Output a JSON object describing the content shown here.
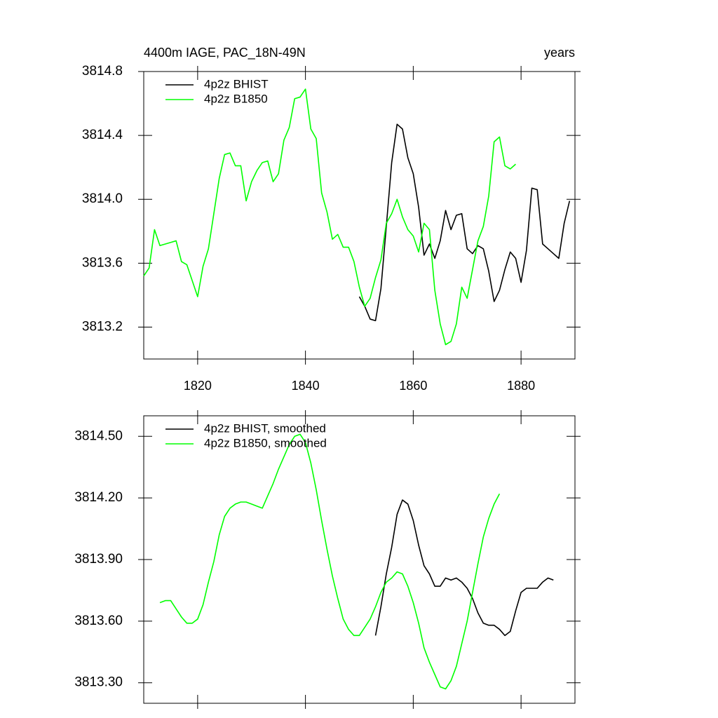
{
  "chart_data": [
    {
      "type": "line",
      "title": "4400m IAGE, PAC_18N-49N",
      "right_title": "years",
      "x": [
        1810,
        1811,
        1812,
        1813,
        1814,
        1815,
        1816,
        1817,
        1818,
        1819,
        1820,
        1821,
        1822,
        1823,
        1824,
        1825,
        1826,
        1827,
        1828,
        1829,
        1830,
        1831,
        1832,
        1833,
        1834,
        1835,
        1836,
        1837,
        1838,
        1839,
        1840,
        1841,
        1842,
        1843,
        1844,
        1845,
        1846,
        1847,
        1848,
        1849,
        1850,
        1851,
        1852,
        1853,
        1854,
        1855,
        1856,
        1857,
        1858,
        1859,
        1860,
        1861,
        1862,
        1863,
        1864,
        1865,
        1866,
        1867,
        1868,
        1869,
        1870,
        1871,
        1872,
        1873,
        1874,
        1875,
        1876,
        1877,
        1878,
        1879,
        1880,
        1881,
        1882,
        1883,
        1884,
        1885,
        1886,
        1887,
        1888,
        1889
      ],
      "series": [
        {
          "name": "4p2z BHIST",
          "color": "#000000",
          "values": [
            null,
            null,
            null,
            null,
            null,
            null,
            null,
            null,
            null,
            null,
            null,
            null,
            null,
            null,
            null,
            null,
            null,
            null,
            null,
            null,
            null,
            null,
            null,
            null,
            null,
            null,
            null,
            null,
            null,
            null,
            null,
            null,
            null,
            null,
            null,
            null,
            null,
            null,
            null,
            null,
            3813.39,
            3813.33,
            3813.25,
            3813.24,
            3813.44,
            3813.83,
            3814.23,
            3814.47,
            3814.44,
            3814.26,
            3814.16,
            3813.95,
            3813.65,
            3813.72,
            3813.63,
            3813.74,
            3813.93,
            3813.81,
            3813.9,
            3813.91,
            3813.69,
            3813.66,
            3813.71,
            3813.69,
            3813.55,
            3813.36,
            3813.43,
            3813.56,
            3813.67,
            3813.63,
            3813.48,
            3813.68,
            3814.07,
            3814.06,
            3813.72,
            3813.69,
            3813.66,
            3813.63,
            3813.85,
            3813.99
          ]
        },
        {
          "name": "4p2z B1850",
          "color": "#00ff00",
          "values": [
            3813.52,
            3813.57,
            3813.81,
            3813.71,
            3813.72,
            3813.73,
            3813.74,
            3813.61,
            3813.59,
            3813.49,
            3813.39,
            3813.58,
            3813.69,
            3813.91,
            3814.13,
            3814.28,
            3814.29,
            3814.21,
            3814.21,
            3813.99,
            3814.11,
            3814.18,
            3814.23,
            3814.24,
            3814.11,
            3814.16,
            3814.37,
            3814.45,
            3814.63,
            3814.64,
            3814.69,
            3814.44,
            3814.38,
            3814.04,
            3813.92,
            3813.75,
            3813.78,
            3813.7,
            3813.7,
            3813.61,
            3813.45,
            3813.33,
            3813.38,
            3813.51,
            3813.62,
            3813.85,
            3813.91,
            3814.0,
            3813.89,
            3813.81,
            3813.77,
            3813.67,
            3813.85,
            3813.81,
            3813.43,
            3813.22,
            3813.09,
            3813.11,
            3813.22,
            3813.45,
            3813.38,
            3813.56,
            3813.74,
            3813.83,
            3814.02,
            3814.36,
            3814.39,
            3814.21,
            3814.19,
            3814.22,
            null,
            null,
            null,
            null,
            null,
            null,
            null,
            null,
            null,
            null
          ]
        }
      ],
      "xlim": [
        1810,
        1890
      ],
      "xticks": [
        1820,
        1840,
        1860,
        1880
      ],
      "ylim": [
        3813.0,
        3814.8
      ],
      "yticks": [
        3813.2,
        3813.6,
        {
          "value": 3814,
          "label": "3814.0"
        },
        3814.4,
        3814.8
      ],
      "legend": "upper left"
    },
    {
      "type": "line",
      "x": [
        1813,
        1814,
        1815,
        1816,
        1817,
        1818,
        1819,
        1820,
        1821,
        1822,
        1823,
        1824,
        1825,
        1826,
        1827,
        1828,
        1829,
        1830,
        1831,
        1832,
        1833,
        1834,
        1835,
        1836,
        1837,
        1838,
        1839,
        1840,
        1841,
        1842,
        1843,
        1844,
        1845,
        1846,
        1847,
        1848,
        1849,
        1850,
        1851,
        1852,
        1853,
        1854,
        1855,
        1856,
        1857,
        1858,
        1859,
        1860,
        1861,
        1862,
        1863,
        1864,
        1865,
        1866,
        1867,
        1868,
        1869,
        1870,
        1871,
        1872,
        1873,
        1874,
        1875,
        1876,
        1877,
        1878,
        1879,
        1880,
        1881,
        1882,
        1883,
        1884,
        1885,
        1886
      ],
      "series": [
        {
          "name": "4p2z BHIST, smoothed",
          "color": "#000000",
          "values": [
            null,
            null,
            null,
            null,
            null,
            null,
            null,
            null,
            null,
            null,
            null,
            null,
            null,
            null,
            null,
            null,
            null,
            null,
            null,
            null,
            null,
            null,
            null,
            null,
            null,
            null,
            null,
            null,
            null,
            null,
            null,
            null,
            null,
            null,
            null,
            null,
            null,
            null,
            null,
            null,
            3813.53,
            3813.67,
            3813.83,
            3813.96,
            3814.12,
            3814.19,
            3814.17,
            3814.09,
            3813.97,
            3813.87,
            3813.83,
            3813.77,
            3813.77,
            3813.81,
            3813.8,
            3813.81,
            3813.79,
            3813.76,
            3813.71,
            3813.64,
            3813.59,
            3813.58,
            3813.58,
            3813.56,
            3813.53,
            3813.55,
            3813.65,
            3813.74,
            3813.76,
            3813.76,
            3813.76,
            3813.79,
            3813.81,
            3813.8
          ]
        },
        {
          "name": "4p2z B1850, smoothed",
          "color": "#00ff00",
          "values": [
            3813.69,
            3813.7,
            3813.7,
            3813.66,
            3813.62,
            3813.59,
            3813.59,
            3813.61,
            3813.68,
            3813.79,
            3813.89,
            3814.02,
            3814.11,
            3814.15,
            3814.17,
            3814.18,
            3814.18,
            3814.17,
            3814.16,
            3814.15,
            3814.21,
            3814.27,
            3814.34,
            3814.4,
            3814.46,
            3814.5,
            3814.51,
            3814.47,
            3814.37,
            3814.24,
            3814.09,
            3813.95,
            3813.82,
            3813.71,
            3813.61,
            3813.56,
            3813.53,
            3813.53,
            3813.57,
            3813.61,
            3813.67,
            3813.74,
            3813.79,
            3813.81,
            3813.84,
            3813.83,
            3813.77,
            3813.69,
            3813.59,
            3813.47,
            3813.4,
            3813.34,
            3813.28,
            3813.27,
            3813.31,
            3813.38,
            3813.49,
            3813.6,
            3813.74,
            3813.88,
            3814.01,
            3814.1,
            3814.17,
            3814.22,
            null,
            null,
            null,
            null,
            null,
            null,
            null,
            null,
            null,
            null
          ]
        }
      ],
      "xlim": [
        1810,
        1890
      ],
      "ylim": [
        3813.2,
        3814.6
      ],
      "yticks": [
        {
          "value": 3813.3,
          "label": "3813.30"
        },
        {
          "value": 3813.6,
          "label": "3813.60"
        },
        {
          "value": 3813.9,
          "label": "3813.90"
        },
        {
          "value": 3814.2,
          "label": "3814.20"
        },
        {
          "value": 3814.5,
          "label": "3814.50"
        }
      ],
      "legend": "upper left"
    }
  ]
}
